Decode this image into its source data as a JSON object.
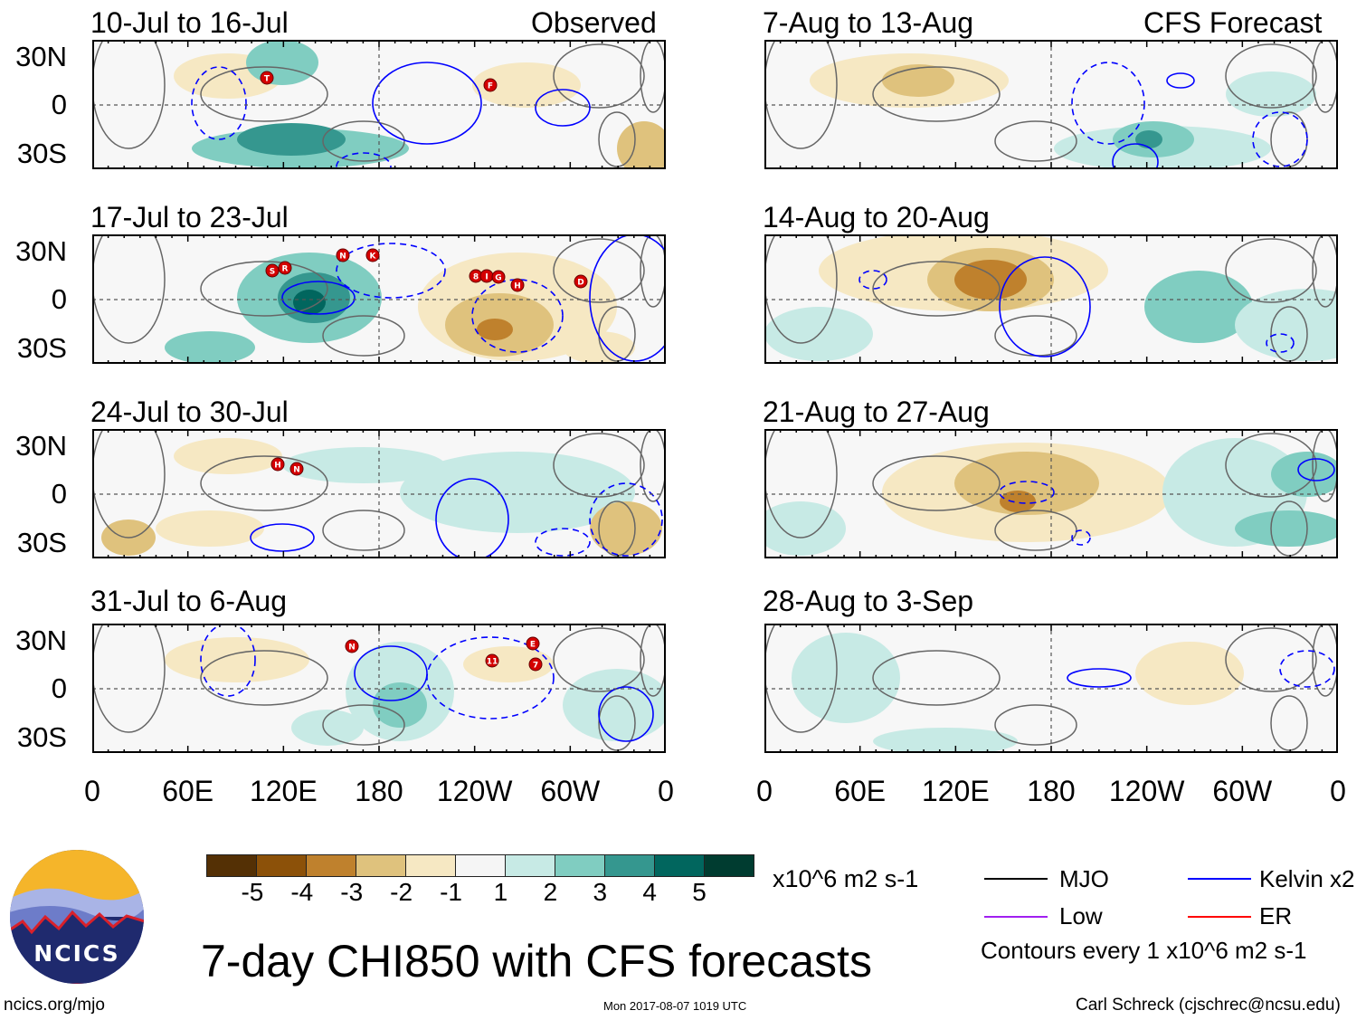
{
  "left_column": {
    "label": "Observed",
    "panels": [
      {
        "title": "10-Jul to 16-Jul",
        "storms": [
          "T",
          "F"
        ]
      },
      {
        "title": "17-Jul to 23-Jul",
        "storms": [
          "S",
          "R",
          "N",
          "K",
          "8",
          "I",
          "G",
          "H",
          "D"
        ]
      },
      {
        "title": "24-Jul to 30-Jul",
        "storms": [
          "H",
          "N"
        ]
      },
      {
        "title": "31-Jul to 6-Aug",
        "storms": [
          "N",
          "11",
          "E",
          "7"
        ]
      }
    ]
  },
  "right_column": {
    "label": "CFS Forecast",
    "panels": [
      {
        "title": "7-Aug to 13-Aug"
      },
      {
        "title": "14-Aug to 20-Aug"
      },
      {
        "title": "21-Aug to 27-Aug"
      },
      {
        "title": "28-Aug to 3-Sep"
      }
    ]
  },
  "lat_labels": [
    "30N",
    "0",
    "30S"
  ],
  "lon_labels": [
    "0",
    "60E",
    "120E",
    "180",
    "120W",
    "60W",
    "0"
  ],
  "colorbar": {
    "colors": [
      "#543005",
      "#8c5109",
      "#bf812d",
      "#dfc27d",
      "#f6e8c3",
      "#f5f5f5",
      "#c7eae5",
      "#80cdc1",
      "#35978f",
      "#01665e",
      "#003c30"
    ],
    "tick_labels": [
      "-5",
      "-4",
      "-3",
      "-2",
      "-1",
      "1",
      "2",
      "3",
      "4",
      "5"
    ],
    "units": "x10^6 m2 s-1"
  },
  "legend": {
    "items": [
      {
        "label": "MJO",
        "color": "#000000"
      },
      {
        "label": "Kelvin x2",
        "color": "#0000ff"
      },
      {
        "label": "Low",
        "color": "#a020f0"
      },
      {
        "label": "ER",
        "color": "#ff0000"
      }
    ],
    "contour_note": "Contours every 1 x10^6 m2 s-1"
  },
  "title": "7-day CHI850 with CFS forecasts",
  "logo_text": "NCICS",
  "footer": {
    "url": "ncics.org/mjo",
    "timestamp": "Mon 2017-08-07 1019 UTC",
    "author": "Carl Schreck (cjschrec@ncsu.edu)"
  }
}
